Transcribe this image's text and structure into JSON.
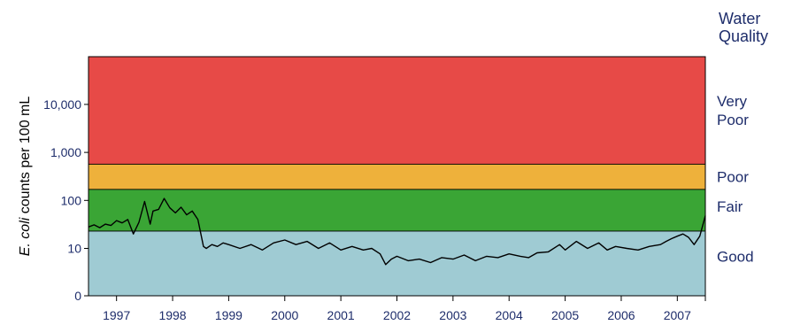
{
  "chart_data": {
    "type": "line",
    "ylabel_italic": "E. coli",
    "ylabel_rest": " counts per 100 mL",
    "right_title_lines": [
      "Water",
      "Quality"
    ],
    "y_scale": "log",
    "y_ticks": [
      {
        "value": 0,
        "label": "0"
      },
      {
        "value": 10,
        "label": "10"
      },
      {
        "value": 100,
        "label": "100"
      },
      {
        "value": 1000,
        "label": "1,000"
      },
      {
        "value": 10000,
        "label": "10,000"
      }
    ],
    "x_ticks": [
      "1997",
      "1998",
      "1999",
      "2000",
      "2001",
      "2002",
      "2003",
      "2004",
      "2005",
      "2006",
      "2007"
    ],
    "bands": [
      {
        "name": "Good",
        "lines": [
          "Good"
        ],
        "from": 0,
        "to": 23,
        "color": "#9fcbd3"
      },
      {
        "name": "Fair",
        "lines": [
          "Fair"
        ],
        "from": 23,
        "to": 170,
        "color": "#3aa535"
      },
      {
        "name": "Poor",
        "lines": [
          "Poor"
        ],
        "from": 170,
        "to": 570,
        "color": "#eeb13b"
      },
      {
        "name": "Very Poor",
        "lines": [
          "Very",
          "Poor"
        ],
        "from": 570,
        "to": 100000,
        "color": "#e74a47"
      }
    ],
    "series": [
      {
        "color": "#000000",
        "x": [
          1996.5,
          1996.6,
          1996.7,
          1996.8,
          1996.9,
          1997.0,
          1997.1,
          1997.2,
          1997.3,
          1997.4,
          1997.5,
          1997.6,
          1997.65,
          1997.75,
          1997.85,
          1997.95,
          1998.05,
          1998.15,
          1998.25,
          1998.35,
          1998.45,
          1998.55,
          1998.6,
          1998.7,
          1998.8,
          1998.9,
          1999.0,
          1999.2,
          1999.4,
          1999.6,
          1999.8,
          2000.0,
          2000.2,
          2000.4,
          2000.6,
          2000.8,
          2001.0,
          2001.2,
          2001.4,
          2001.55,
          2001.7,
          2001.8,
          2001.9,
          2002.0,
          2002.2,
          2002.4,
          2002.6,
          2002.8,
          2003.0,
          2003.2,
          2003.4,
          2003.6,
          2003.8,
          2004.0,
          2004.2,
          2004.35,
          2004.5,
          2004.7,
          2004.9,
          2005.0,
          2005.2,
          2005.4,
          2005.6,
          2005.75,
          2005.9,
          2006.1,
          2006.3,
          2006.5,
          2006.7,
          2006.8,
          2006.9,
          2007.0,
          2007.1,
          2007.2,
          2007.3,
          2007.4,
          2007.5
        ],
        "y": [
          28,
          31,
          27,
          32,
          30,
          38,
          34,
          40,
          20,
          35,
          95,
          32,
          60,
          65,
          110,
          70,
          55,
          72,
          50,
          60,
          40,
          11,
          10,
          12,
          11,
          13,
          12,
          10,
          12,
          9,
          13,
          15,
          12,
          14,
          10,
          13,
          9,
          11,
          9,
          10,
          7,
          3.5,
          5,
          6,
          4.5,
          5,
          4,
          5.5,
          5,
          6.5,
          4.5,
          6,
          5.5,
          7,
          6,
          5.5,
          7.5,
          8,
          12,
          9,
          14,
          10,
          13,
          9,
          11,
          10,
          9,
          11,
          12,
          14,
          16,
          18,
          20,
          17,
          12,
          18,
          48
        ]
      }
    ]
  }
}
